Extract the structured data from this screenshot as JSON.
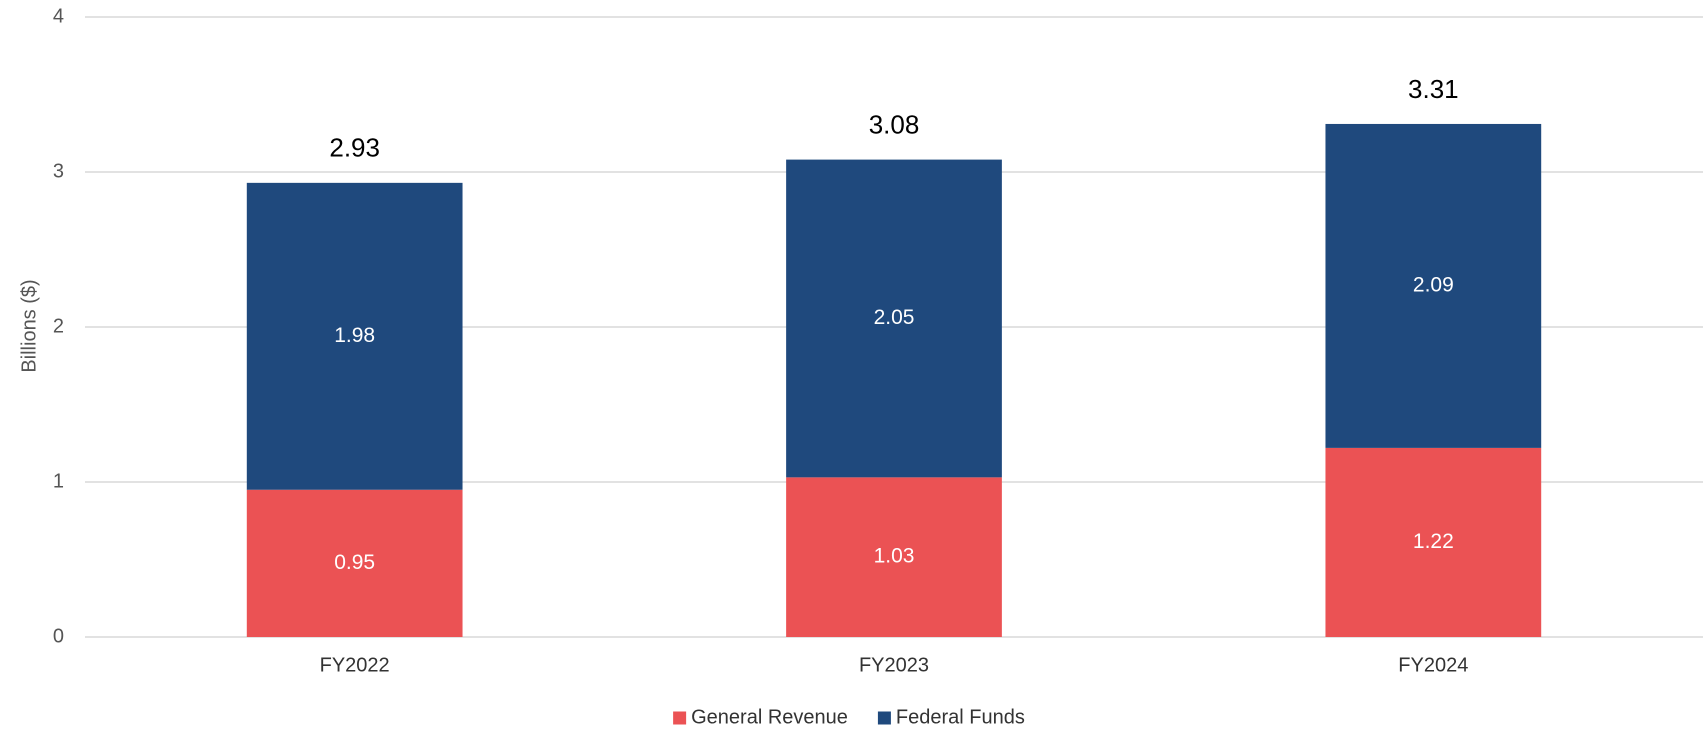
{
  "chart_data": {
    "type": "stacked_bar",
    "y_axis_label": "Billions ($)",
    "categories": [
      "FY2022",
      "FY2023",
      "FY2024"
    ],
    "series": [
      {
        "name": "General Revenue",
        "color": "#eb5254",
        "values": [
          0.95,
          1.03,
          1.22
        ]
      },
      {
        "name": "Federal Funds",
        "color": "#1f497d",
        "values": [
          1.98,
          2.05,
          2.09
        ]
      }
    ],
    "totals": [
      2.93,
      3.08,
      3.31
    ],
    "ylim": [
      0,
      4
    ],
    "yticks": [
      0,
      1,
      2,
      3,
      4
    ],
    "grid": true,
    "legend": "bottom"
  }
}
